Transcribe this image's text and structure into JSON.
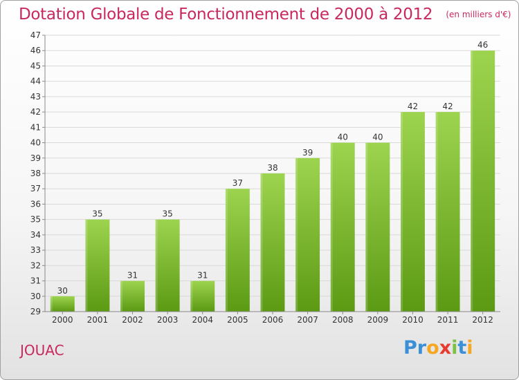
{
  "header": {
    "title": "Dotation Globale de Fonctionnement de 2000 à 2012",
    "subtitle": "(en milliers d'€)"
  },
  "footer": {
    "city": "JOUAC",
    "logo": {
      "letters": [
        "P",
        "r",
        "o",
        "x",
        "i",
        "t",
        "i"
      ],
      "colors": [
        "#3a8fd6",
        "#3a8fd6",
        "#f5a623",
        "#e63b2e",
        "#7cc242",
        "#3a8fd6",
        "#f5a623"
      ]
    }
  },
  "colors": {
    "bar_top": "#9dd44f",
    "bar_bottom": "#5c9a14",
    "grid": "#d9d9d9",
    "axis": "#888888",
    "text": "#333333"
  },
  "chart_data": {
    "type": "bar",
    "categories": [
      "2000",
      "2001",
      "2002",
      "2003",
      "2004",
      "2005",
      "2006",
      "2007",
      "2008",
      "2009",
      "2010",
      "2011",
      "2012"
    ],
    "values": [
      30,
      35,
      31,
      35,
      31,
      37,
      38,
      39,
      40,
      40,
      42,
      42,
      46
    ],
    "data_labels": [
      "30",
      "35",
      "31",
      "35",
      "31",
      "37",
      "38",
      "39",
      "40",
      "40",
      "42",
      "42",
      "46"
    ],
    "ylim": [
      29,
      47
    ],
    "yticks": [
      29,
      30,
      31,
      32,
      33,
      34,
      35,
      36,
      37,
      38,
      39,
      40,
      41,
      42,
      43,
      44,
      45,
      46,
      47
    ],
    "grid": true
  }
}
